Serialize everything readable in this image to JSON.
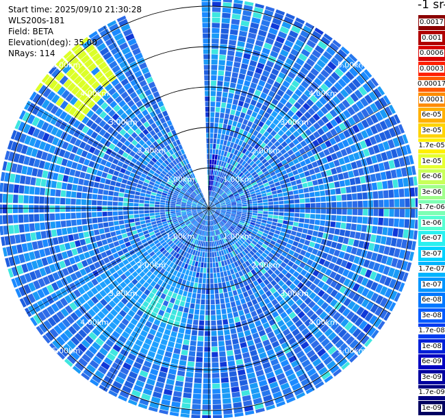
{
  "info": {
    "start_time": "Start time: 2025/09/10 21:30:28",
    "station": "WLS200s-181",
    "field": "Field: BETA",
    "elevation": "Elevation(deg): 35.00",
    "nrays": "NRays: 114"
  },
  "colorbar": {
    "unit": "-1 sr-1",
    "labels": [
      "0.0017",
      "0.001",
      "0.0006",
      "0.0003",
      "0.00017",
      "0.0001",
      "6e-05",
      "3e-05",
      "1.7e-05",
      "1e-05",
      "6e-06",
      "3e-06",
      "1.7e-06",
      "1e-06",
      "6e-07",
      "3e-07",
      "1.7e-07",
      "1e-07",
      "6e-08",
      "3e-08",
      "1.7e-08",
      "1e-08",
      "6e-09",
      "3e-09",
      "1.7e-09",
      "1e-09"
    ],
    "colors": [
      "#8b0000",
      "#b00000",
      "#d80000",
      "#ff2000",
      "#ff5a00",
      "#ff8c00",
      "#ffb000",
      "#ffd300",
      "#fff000",
      "#e6ff30",
      "#c8ff5a",
      "#a0ff8c",
      "#7dffb4",
      "#55ffd2",
      "#28f0f0",
      "#00d2ff",
      "#00b4ff",
      "#0096ff",
      "#0078ff",
      "#005aff",
      "#003cf0",
      "#0020d8",
      "#0000c0",
      "#0000a0",
      "#000080",
      "#000060"
    ]
  },
  "chart_data": {
    "type": "ppi-polar",
    "field": "BETA",
    "elevation_deg": 35.0,
    "n_rays": 114,
    "range_rings_km": [
      1,
      2,
      3,
      4,
      5
    ],
    "ring_labels": [
      "1.00km",
      "2.00km",
      "3.00km",
      "4.00km",
      "5.00km"
    ],
    "max_range_km": 5.2,
    "missing_sector_deg": [
      337,
      358
    ],
    "background_level": "1e-07",
    "regions": [
      {
        "level": "3e-08",
        "azimuth_deg": [
          0,
          360
        ],
        "note": "dominant"
      },
      {
        "level": "1e-07",
        "azimuth_deg": [
          190,
          240
        ],
        "range_km": [
          1.5,
          4.0
        ]
      },
      {
        "level": "1.7e-07",
        "azimuth_deg": [
          195,
          215
        ],
        "range_km": [
          2.2,
          3.0
        ]
      },
      {
        "level": "1e-05",
        "azimuth_deg": [
          305,
          325
        ],
        "range_km": [
          3.8,
          5.2
        ]
      },
      {
        "level": "1e-07",
        "azimuth_deg": [
          30,
          45
        ],
        "range_km": [
          2.4,
          2.8
        ]
      },
      {
        "level": "1e-09",
        "azimuth_deg": [
          0,
          10
        ],
        "range_km": [
          0.3,
          1.3
        ]
      }
    ]
  }
}
